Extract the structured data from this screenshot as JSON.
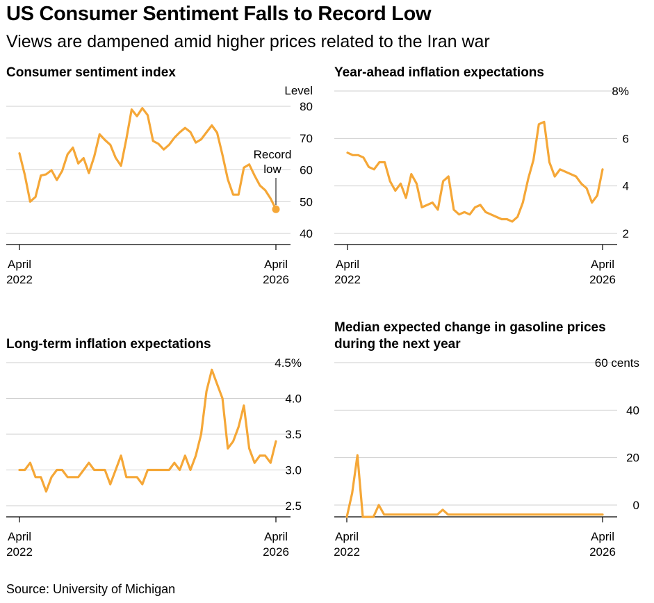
{
  "header": {
    "title": "US Consumer Sentiment Falls to Record Low",
    "subtitle": "Views are dampened amid higher prices related to the Iran war"
  },
  "footer": {
    "source": "Source: University of Michigan"
  },
  "colors": {
    "line": "#F5A737",
    "grid": "#cfcfcf",
    "axis": "#000000"
  },
  "chart_data": [
    {
      "type": "line",
      "title": "Consumer sentiment index",
      "unit_label": "Level",
      "y_ticks": [
        {
          "value": 80,
          "label": "80"
        },
        {
          "value": 70,
          "label": "70"
        },
        {
          "value": 60,
          "label": "60"
        },
        {
          "value": 50,
          "label": "50"
        },
        {
          "value": 40,
          "label": "40"
        }
      ],
      "ylim": [
        40,
        80
      ],
      "x_ticks": [
        {
          "index": 0,
          "label": [
            "April",
            "2022"
          ]
        },
        {
          "index": 48,
          "label": [
            "April",
            "2026"
          ]
        }
      ],
      "annotation": {
        "lines": [
          "Record",
          "low"
        ],
        "index": 48
      },
      "end_marker": true,
      "series": [
        {
          "values": [
            65.2,
            58.4,
            50.0,
            51.5,
            58.2,
            58.6,
            59.9,
            56.8,
            59.7,
            64.9,
            67.0,
            62.0,
            63.7,
            59.0,
            64.2,
            71.2,
            69.4,
            67.9,
            63.8,
            61.3,
            69.7,
            79.0,
            76.9,
            79.4,
            77.2,
            69.1,
            68.2,
            66.4,
            67.9,
            70.1,
            71.8,
            73.2,
            71.9,
            68.6,
            69.6,
            71.8,
            74.0,
            71.7,
            64.7,
            57.0,
            52.2,
            52.2,
            60.7,
            61.7,
            58.2,
            55.1,
            53.6,
            51.0,
            47.6
          ]
        }
      ]
    },
    {
      "type": "line",
      "title": "Year-ahead inflation expectations",
      "y_ticks": [
        {
          "value": 8,
          "label": "8%"
        },
        {
          "value": 6,
          "label": "6"
        },
        {
          "value": 4,
          "label": "4"
        },
        {
          "value": 2,
          "label": "2"
        }
      ],
      "ylim": [
        2,
        8
      ],
      "x_ticks": [
        {
          "index": 0,
          "label": [
            "April",
            "2022"
          ]
        },
        {
          "index": 48,
          "label": [
            "April",
            "2026"
          ]
        }
      ],
      "series": [
        {
          "values": [
            5.4,
            5.3,
            5.3,
            5.2,
            4.8,
            4.7,
            5.0,
            5.0,
            4.2,
            3.8,
            4.1,
            3.5,
            4.5,
            4.1,
            3.1,
            3.2,
            3.3,
            3.0,
            4.2,
            4.4,
            3.0,
            2.8,
            2.9,
            2.8,
            3.1,
            3.2,
            2.9,
            2.8,
            2.7,
            2.6,
            2.6,
            2.5,
            2.7,
            3.3,
            4.3,
            5.1,
            6.6,
            6.7,
            5.0,
            4.4,
            4.7,
            4.6,
            4.5,
            4.4,
            4.1,
            3.9,
            3.3,
            3.6,
            4.7
          ]
        }
      ]
    },
    {
      "type": "line",
      "title": "Long-term inflation expectations",
      "y_ticks": [
        {
          "value": 4.5,
          "label": "4.5%"
        },
        {
          "value": 4.0,
          "label": "4.0"
        },
        {
          "value": 3.5,
          "label": "3.5"
        },
        {
          "value": 3.0,
          "label": "3.0"
        },
        {
          "value": 2.5,
          "label": "2.5"
        }
      ],
      "ylim": [
        2.5,
        4.5
      ],
      "x_ticks": [
        {
          "index": 0,
          "label": [
            "April",
            "2022"
          ]
        },
        {
          "index": 48,
          "label": [
            "April",
            "2026"
          ]
        }
      ],
      "series": [
        {
          "values": [
            3.0,
            3.0,
            3.1,
            2.9,
            2.9,
            2.7,
            2.9,
            3.0,
            3.0,
            2.9,
            2.9,
            2.9,
            3.0,
            3.1,
            3.0,
            3.0,
            3.0,
            2.8,
            3.0,
            3.2,
            2.9,
            2.9,
            2.9,
            2.8,
            3.0,
            3.0,
            3.0,
            3.0,
            3.0,
            3.1,
            3.0,
            3.2,
            3.0,
            3.2,
            3.5,
            4.1,
            4.4,
            4.2,
            4.0,
            3.3,
            3.4,
            3.6,
            3.9,
            3.3,
            3.1,
            3.2,
            3.2,
            3.1,
            3.4
          ]
        }
      ]
    },
    {
      "type": "line",
      "title": "Median expected change in gasoline prices during the next year",
      "y_ticks": [
        {
          "value": 60,
          "label": "60 cents"
        },
        {
          "value": 40,
          "label": "40"
        },
        {
          "value": 20,
          "label": "20"
        },
        {
          "value": 0,
          "label": "0"
        }
      ],
      "ylim": [
        -5,
        60
      ],
      "x_ticks": [
        {
          "index": 0,
          "label": [
            "April",
            "2022"
          ]
        },
        {
          "index": 48,
          "label": [
            "April",
            "2026"
          ]
        }
      ],
      "series": [
        {
          "values": [
            -5,
            5,
            21,
            -5,
            -5,
            -5,
            0,
            -4,
            -4,
            -4,
            -4,
            -4,
            -4,
            -4,
            -4,
            -4,
            -4,
            -4,
            -2,
            -4,
            -4,
            -4,
            -4,
            -4,
            -4,
            -4,
            -4,
            -4,
            -4,
            -4,
            -4,
            -4,
            -4,
            -4,
            -4,
            -4,
            -4,
            -4,
            -4,
            -4,
            -4,
            -4,
            -4,
            -4,
            -4,
            -4,
            -4,
            -4,
            -4
          ]
        }
      ]
    }
  ]
}
